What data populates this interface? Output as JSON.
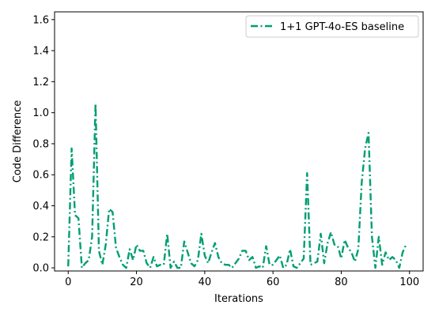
{
  "colors": {
    "series": "#009E73",
    "axis": "#000000",
    "legend_border": "#cccccc"
  },
  "chart_data": {
    "type": "line",
    "xlabel": "Iterations",
    "ylabel": "Code Difference",
    "xlim": [
      -4,
      104
    ],
    "ylim": [
      -0.02,
      1.65
    ],
    "x_ticks": [
      0,
      20,
      40,
      60,
      80,
      100
    ],
    "y_ticks": [
      0.0,
      0.2,
      0.4,
      0.6,
      0.8,
      1.0,
      1.2,
      1.4,
      1.6
    ],
    "x_tick_labels": [
      "0",
      "20",
      "40",
      "60",
      "80",
      "100"
    ],
    "y_tick_labels": [
      "0.0",
      "0.2",
      "0.4",
      "0.6",
      "0.8",
      "1.0",
      "1.2",
      "1.4",
      "1.6"
    ],
    "grid": false,
    "legend_position": "top-right",
    "series": [
      {
        "name": "1+1 GPT-4o-ES baseline",
        "line_style": "dashdot",
        "x": [
          0,
          1,
          2,
          3,
          4,
          5,
          6,
          7,
          8,
          9,
          10,
          11,
          12,
          13,
          14,
          15,
          16,
          17,
          18,
          19,
          20,
          21,
          22,
          23,
          24,
          25,
          26,
          27,
          28,
          29,
          30,
          31,
          32,
          33,
          34,
          35,
          36,
          37,
          38,
          39,
          40,
          41,
          42,
          43,
          44,
          45,
          46,
          47,
          48,
          49,
          50,
          51,
          52,
          53,
          54,
          55,
          56,
          57,
          58,
          59,
          60,
          61,
          62,
          63,
          64,
          65,
          66,
          67,
          68,
          69,
          70,
          71,
          72,
          73,
          74,
          75,
          76,
          77,
          78,
          79,
          80,
          81,
          82,
          83,
          84,
          85,
          86,
          87,
          88,
          89,
          90,
          91,
          92,
          93,
          94,
          95,
          96,
          97,
          98,
          99
        ],
        "values": [
          0.01,
          0.77,
          0.34,
          0.32,
          0.0,
          0.03,
          0.05,
          0.2,
          1.06,
          0.11,
          0.02,
          0.15,
          0.38,
          0.36,
          0.13,
          0.07,
          0.02,
          0.0,
          0.12,
          0.05,
          0.15,
          0.11,
          0.11,
          0.03,
          0.0,
          0.07,
          0.01,
          0.02,
          0.02,
          0.22,
          0.0,
          0.04,
          0.0,
          0.0,
          0.17,
          0.1,
          0.03,
          0.01,
          0.05,
          0.22,
          0.08,
          0.03,
          0.1,
          0.16,
          0.07,
          0.03,
          0.02,
          0.02,
          0.0,
          0.03,
          0.06,
          0.11,
          0.11,
          0.05,
          0.07,
          0.0,
          0.01,
          0.0,
          0.14,
          0.02,
          0.02,
          0.05,
          0.08,
          0.0,
          0.02,
          0.12,
          0.01,
          0.0,
          0.03,
          0.06,
          0.61,
          0.02,
          0.03,
          0.04,
          0.22,
          0.03,
          0.16,
          0.23,
          0.15,
          0.14,
          0.06,
          0.18,
          0.13,
          0.1,
          0.04,
          0.12,
          0.55,
          0.77,
          0.87,
          0.2,
          0.0,
          0.2,
          0.02,
          0.1,
          0.05,
          0.07,
          0.05,
          0.0,
          0.1,
          0.15
        ]
      }
    ]
  }
}
